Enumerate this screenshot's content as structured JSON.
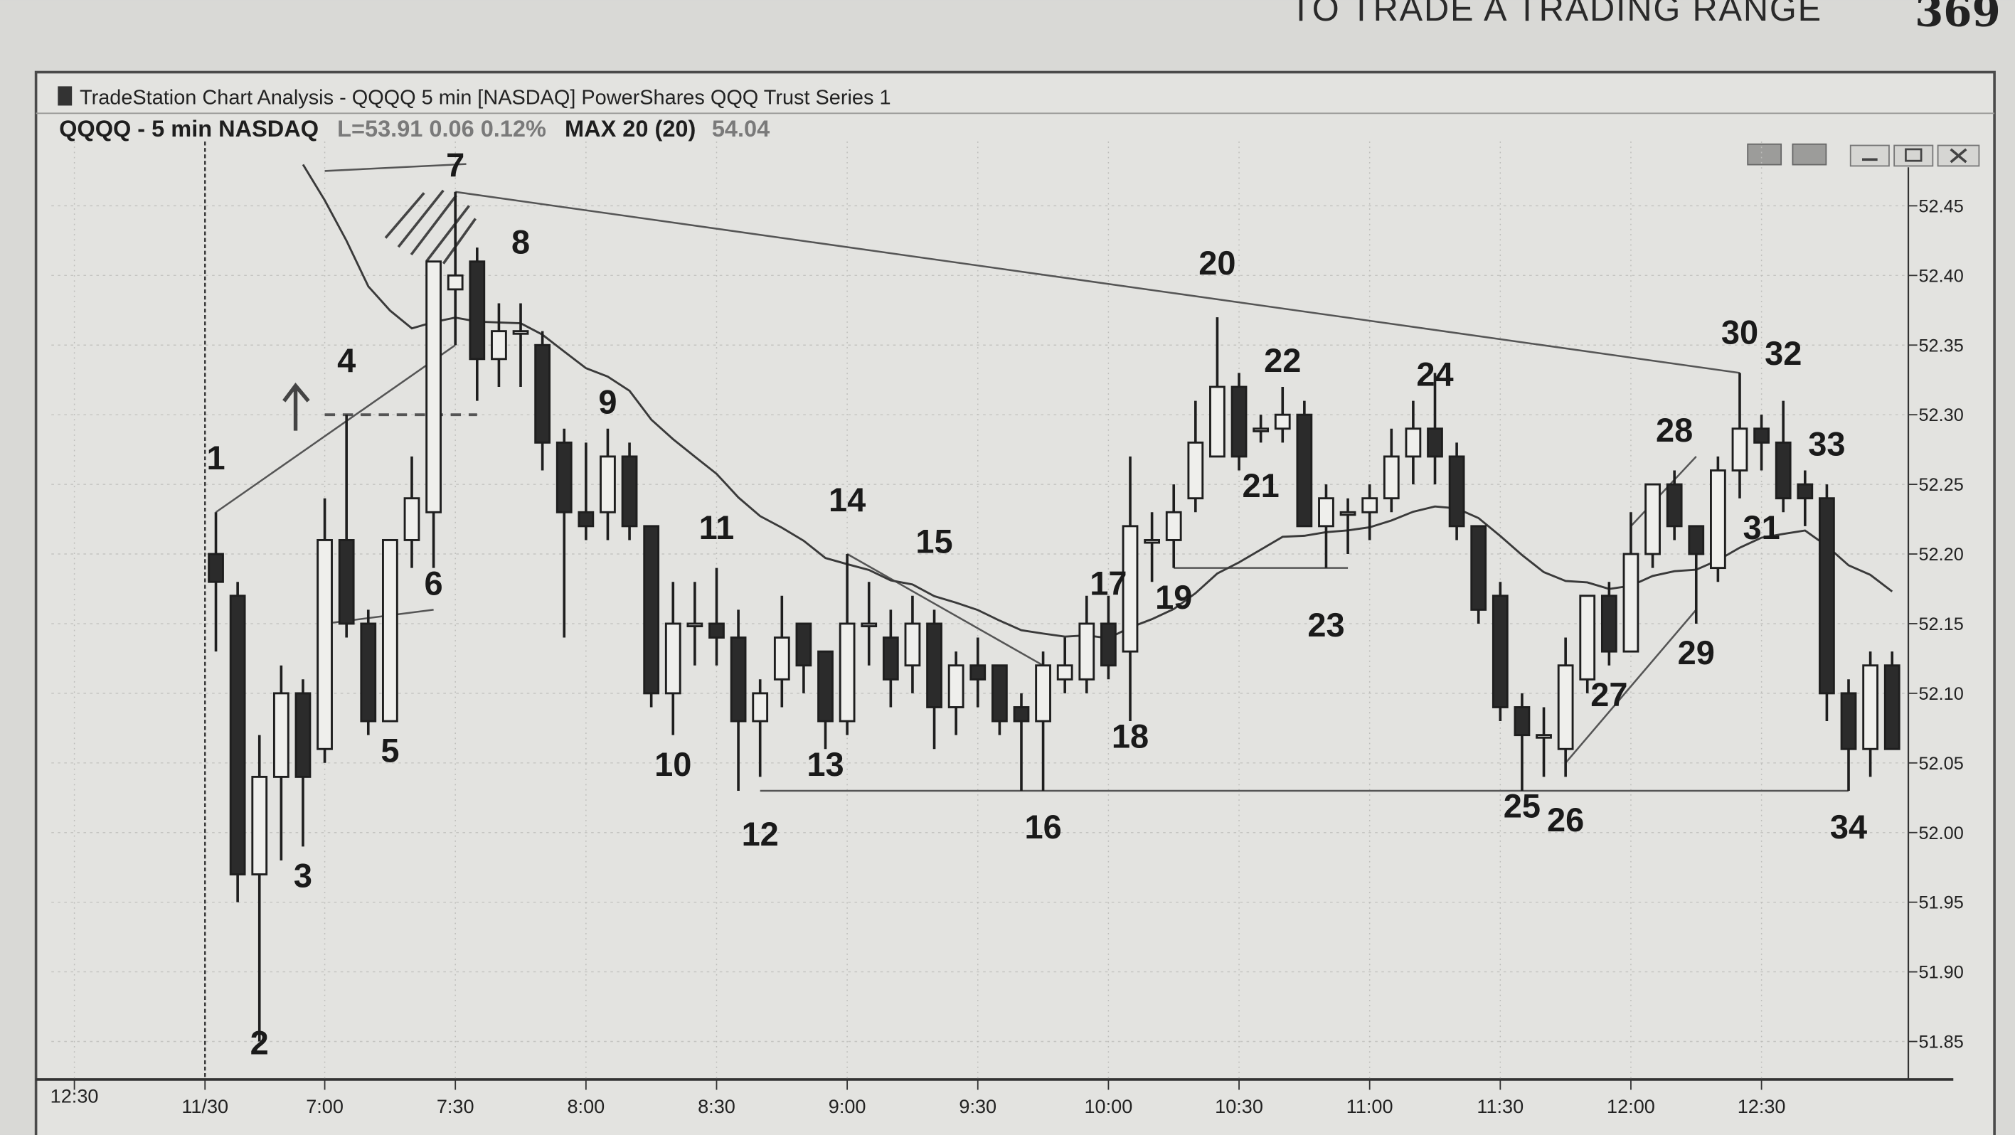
{
  "book_header": {
    "running_title": "TO TRADE A TRADING RANGE",
    "page_number": "369"
  },
  "window": {
    "title": "TradeStation Chart Analysis - QQQQ 5 min [NASDAQ] PowerShares QQQ Trust Series 1",
    "controls": [
      "toolbar-a",
      "toolbar-b",
      "minimize",
      "maximize",
      "close"
    ]
  },
  "symbol_bar": {
    "symbol": "QQQQ - 5 min NASDAQ",
    "last": "L=53.91 0.06 0.12%",
    "indicator": "MAX 20 (20)",
    "indicator_value": "54.04"
  },
  "chart_data": {
    "type": "candlestick",
    "title": "",
    "colors": {
      "bull_fill": "#efefec",
      "bear_fill": "#2b2b2b",
      "outline": "#1e1e1e",
      "ma_line": "#3a3a3a"
    },
    "ylim": [
      51.82,
      52.5
    ],
    "y_ticks": [
      "52.45",
      "52.40",
      "52.35",
      "52.30",
      "52.25",
      "52.20",
      "52.15",
      "52.10",
      "52.05",
      "52.00",
      "51.95",
      "51.90",
      "51.85"
    ],
    "x_ticks": [
      "12:30",
      "11/30",
      "7:00",
      "7:30",
      "8:00",
      "8:30",
      "9:00",
      "9:30",
      "10:00",
      "10:30",
      "11:00",
      "11:30",
      "12:00",
      "12:30"
    ],
    "grid": true,
    "ohlc_fields": [
      "open",
      "high",
      "low",
      "close"
    ],
    "bars": [
      [
        52.2,
        52.23,
        52.13,
        52.18
      ],
      [
        52.17,
        52.18,
        51.95,
        51.97
      ],
      [
        51.97,
        52.07,
        51.85,
        52.04
      ],
      [
        52.04,
        52.12,
        51.98,
        52.1
      ],
      [
        52.1,
        52.11,
        51.99,
        52.04
      ],
      [
        52.06,
        52.24,
        52.05,
        52.21
      ],
      [
        52.21,
        52.3,
        52.14,
        52.15
      ],
      [
        52.15,
        52.16,
        52.07,
        52.08
      ],
      [
        52.08,
        52.21,
        52.08,
        52.21
      ],
      [
        52.21,
        52.27,
        52.19,
        52.24
      ],
      [
        52.23,
        52.41,
        52.19,
        52.41
      ],
      [
        52.39,
        52.46,
        52.35,
        52.4
      ],
      [
        52.41,
        52.42,
        52.31,
        52.34
      ],
      [
        52.34,
        52.38,
        52.32,
        52.36
      ],
      [
        52.36,
        52.38,
        52.32,
        52.36
      ],
      [
        52.35,
        52.36,
        52.26,
        52.28
      ],
      [
        52.28,
        52.29,
        52.14,
        52.23
      ],
      [
        52.23,
        52.28,
        52.21,
        52.22
      ],
      [
        52.23,
        52.29,
        52.21,
        52.27
      ],
      [
        52.27,
        52.28,
        52.21,
        52.22
      ],
      [
        52.22,
        52.22,
        52.09,
        52.1
      ],
      [
        52.1,
        52.18,
        52.07,
        52.15
      ],
      [
        52.15,
        52.18,
        52.12,
        52.15
      ],
      [
        52.15,
        52.19,
        52.12,
        52.14
      ],
      [
        52.14,
        52.16,
        52.03,
        52.08
      ],
      [
        52.08,
        52.11,
        52.04,
        52.1
      ],
      [
        52.11,
        52.17,
        52.09,
        52.14
      ],
      [
        52.15,
        52.15,
        52.1,
        52.12
      ],
      [
        52.13,
        52.13,
        52.06,
        52.08
      ],
      [
        52.08,
        52.2,
        52.07,
        52.15
      ],
      [
        52.15,
        52.18,
        52.12,
        52.15
      ],
      [
        52.14,
        52.16,
        52.09,
        52.11
      ],
      [
        52.12,
        52.17,
        52.1,
        52.15
      ],
      [
        52.15,
        52.16,
        52.06,
        52.09
      ],
      [
        52.09,
        52.13,
        52.07,
        52.12
      ],
      [
        52.12,
        52.14,
        52.09,
        52.11
      ],
      [
        52.12,
        52.12,
        52.07,
        52.08
      ],
      [
        52.09,
        52.1,
        52.03,
        52.08
      ],
      [
        52.08,
        52.13,
        52.03,
        52.12
      ],
      [
        52.11,
        52.14,
        52.1,
        52.12
      ],
      [
        52.11,
        52.17,
        52.1,
        52.15
      ],
      [
        52.15,
        52.17,
        52.11,
        52.12
      ],
      [
        52.13,
        52.27,
        52.08,
        52.22
      ],
      [
        52.21,
        52.23,
        52.18,
        52.21
      ],
      [
        52.21,
        52.25,
        52.19,
        52.23
      ],
      [
        52.24,
        52.31,
        52.23,
        52.28
      ],
      [
        52.27,
        52.37,
        52.27,
        52.32
      ],
      [
        52.32,
        52.33,
        52.26,
        52.27
      ],
      [
        52.29,
        52.3,
        52.28,
        52.29
      ],
      [
        52.29,
        52.32,
        52.28,
        52.3
      ],
      [
        52.3,
        52.31,
        52.22,
        52.22
      ],
      [
        52.22,
        52.25,
        52.19,
        52.24
      ],
      [
        52.23,
        52.24,
        52.2,
        52.23
      ],
      [
        52.23,
        52.25,
        52.21,
        52.24
      ],
      [
        52.24,
        52.29,
        52.23,
        52.27
      ],
      [
        52.27,
        52.31,
        52.25,
        52.29
      ],
      [
        52.29,
        52.33,
        52.25,
        52.27
      ],
      [
        52.27,
        52.28,
        52.21,
        52.22
      ],
      [
        52.22,
        52.22,
        52.15,
        52.16
      ],
      [
        52.17,
        52.18,
        52.08,
        52.09
      ],
      [
        52.09,
        52.1,
        52.03,
        52.07
      ],
      [
        52.07,
        52.09,
        52.04,
        52.07
      ],
      [
        52.06,
        52.14,
        52.04,
        52.12
      ],
      [
        52.11,
        52.17,
        52.1,
        52.17
      ],
      [
        52.17,
        52.18,
        52.12,
        52.13
      ],
      [
        52.13,
        52.23,
        52.13,
        52.2
      ],
      [
        52.2,
        52.25,
        52.19,
        52.25
      ],
      [
        52.25,
        52.26,
        52.21,
        52.22
      ],
      [
        52.22,
        52.22,
        52.15,
        52.2
      ],
      [
        52.19,
        52.27,
        52.18,
        52.26
      ],
      [
        52.26,
        52.33,
        52.24,
        52.29
      ],
      [
        52.29,
        52.3,
        52.26,
        52.28
      ],
      [
        52.28,
        52.31,
        52.23,
        52.24
      ],
      [
        52.25,
        52.26,
        52.22,
        52.24
      ],
      [
        52.24,
        52.25,
        52.08,
        52.1
      ],
      [
        52.1,
        52.11,
        52.03,
        52.06
      ],
      [
        52.06,
        52.13,
        52.04,
        52.12
      ],
      [
        52.12,
        52.13,
        52.06,
        52.06
      ]
    ],
    "annotations": [
      {
        "text": "1",
        "bar": 0,
        "price": 52.27
      },
      {
        "text": "2",
        "bar": 2,
        "price": 51.85
      },
      {
        "text": "3",
        "bar": 4,
        "price": 51.97
      },
      {
        "text": "4",
        "bar": 6,
        "price": 52.34
      },
      {
        "text": "5",
        "bar": 8,
        "price": 52.06
      },
      {
        "text": "6",
        "bar": 10,
        "price": 52.18
      },
      {
        "text": "7",
        "bar": 11,
        "price": 52.48
      },
      {
        "text": "8",
        "bar": 14,
        "price": 52.425
      },
      {
        "text": "9",
        "bar": 18,
        "price": 52.31
      },
      {
        "text": "10",
        "bar": 21,
        "price": 52.05
      },
      {
        "text": "11",
        "bar": 23,
        "price": 52.22
      },
      {
        "text": "12",
        "bar": 25,
        "price": 52.0
      },
      {
        "text": "13",
        "bar": 28,
        "price": 52.05
      },
      {
        "text": "14",
        "bar": 29,
        "price": 52.24
      },
      {
        "text": "15",
        "bar": 33,
        "price": 52.21
      },
      {
        "text": "16",
        "bar": 38,
        "price": 52.005
      },
      {
        "text": "17",
        "bar": 41,
        "price": 52.18
      },
      {
        "text": "18",
        "bar": 42,
        "price": 52.07
      },
      {
        "text": "19",
        "bar": 44,
        "price": 52.17
      },
      {
        "text": "20",
        "bar": 46,
        "price": 52.41
      },
      {
        "text": "21",
        "bar": 48,
        "price": 52.25
      },
      {
        "text": "22",
        "bar": 49,
        "price": 52.34
      },
      {
        "text": "23",
        "bar": 51,
        "price": 52.15
      },
      {
        "text": "24",
        "bar": 56,
        "price": 52.33
      },
      {
        "text": "25",
        "bar": 60,
        "price": 52.02
      },
      {
        "text": "26",
        "bar": 62,
        "price": 52.01
      },
      {
        "text": "27",
        "bar": 64,
        "price": 52.1
      },
      {
        "text": "28",
        "bar": 67,
        "price": 52.29
      },
      {
        "text": "29",
        "bar": 68,
        "price": 52.13
      },
      {
        "text": "30",
        "bar": 70,
        "price": 52.36
      },
      {
        "text": "31",
        "bar": 71,
        "price": 52.22
      },
      {
        "text": "32",
        "bar": 72,
        "price": 52.345
      },
      {
        "text": "33",
        "bar": 74,
        "price": 52.28
      },
      {
        "text": "34",
        "bar": 75,
        "price": 52.005
      }
    ],
    "trendlines": [
      {
        "from": {
          "bar": 11,
          "price": 52.46
        },
        "to": {
          "bar": 70,
          "price": 52.33
        },
        "style": "solid"
      },
      {
        "from": {
          "bar": 25,
          "price": 52.03
        },
        "to": {
          "bar": 75,
          "price": 52.03
        },
        "style": "solid"
      },
      {
        "from": {
          "bar": 44,
          "price": 52.19
        },
        "to": {
          "bar": 52,
          "price": 52.19
        },
        "style": "solid"
      },
      {
        "from": {
          "bar": 0,
          "price": 52.23
        },
        "to": {
          "bar": 11,
          "price": 52.35
        },
        "style": "solid"
      },
      {
        "from": {
          "bar": 29,
          "price": 52.2
        },
        "to": {
          "bar": 38,
          "price": 52.12
        },
        "style": "solid"
      },
      {
        "from": {
          "bar": 62,
          "price": 52.05
        },
        "to": {
          "bar": 68,
          "price": 52.16
        },
        "style": "solid"
      },
      {
        "from": {
          "bar": 65,
          "price": 52.22
        },
        "to": {
          "bar": 68,
          "price": 52.27
        },
        "style": "solid"
      },
      {
        "from": {
          "bar": 5,
          "price": 52.3
        },
        "to": {
          "bar": 12,
          "price": 52.3
        },
        "style": "dashed"
      },
      {
        "from": {
          "bar": 5,
          "price": 52.15
        },
        "to": {
          "bar": 10,
          "price": 52.16
        },
        "style": "solid"
      },
      {
        "from": {
          "bar": 5,
          "price": 52.475
        },
        "to": {
          "bar": 11.5,
          "price": 52.48
        },
        "style": "solid"
      }
    ]
  }
}
